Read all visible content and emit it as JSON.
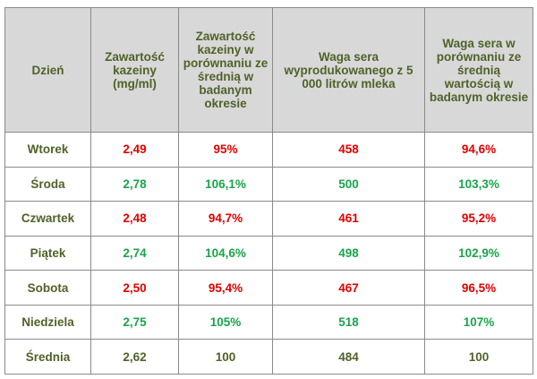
{
  "table": {
    "headers": [
      "Dzień",
      "Zawartość kazeiny (mg/ml)",
      "Zawartość kazeiny w porównaniu ze średnią w badanym okresie",
      "Waga sera wyprodukowanego z 5 000 litrów mleka",
      "Waga sera w porównaniu ze średnią wartością w badanym okresie"
    ],
    "rows": [
      {
        "cells": [
          "Wtorek",
          "2,49",
          "95%",
          "458",
          "94,6%"
        ],
        "tone": "red"
      },
      {
        "cells": [
          "Środa",
          "2,78",
          "106,1%",
          "500",
          "103,3%"
        ],
        "tone": "green"
      },
      {
        "cells": [
          "Czwartek",
          "2,48",
          "94,7%",
          "461",
          "95,2%"
        ],
        "tone": "red"
      },
      {
        "cells": [
          "Piątek",
          "2,74",
          "104,6%",
          "498",
          "102,9%"
        ],
        "tone": "green"
      },
      {
        "cells": [
          "Sobota",
          "2,50",
          "95,4%",
          "467",
          "96,5%"
        ],
        "tone": "red"
      },
      {
        "cells": [
          "Niedziela",
          "2,75",
          "105%",
          "518",
          "107%"
        ],
        "tone": "green"
      },
      {
        "cells": [
          "Średnia",
          "2,62",
          "100",
          "484",
          "100"
        ],
        "tone": "neutral"
      }
    ]
  },
  "colors": {
    "header_bg": "#d8d8d8",
    "header_text": "#4f6228",
    "below_average": "#e00000",
    "above_average": "#19a44a",
    "neutral": "#4f6228",
    "border": "#8a8a8a"
  }
}
